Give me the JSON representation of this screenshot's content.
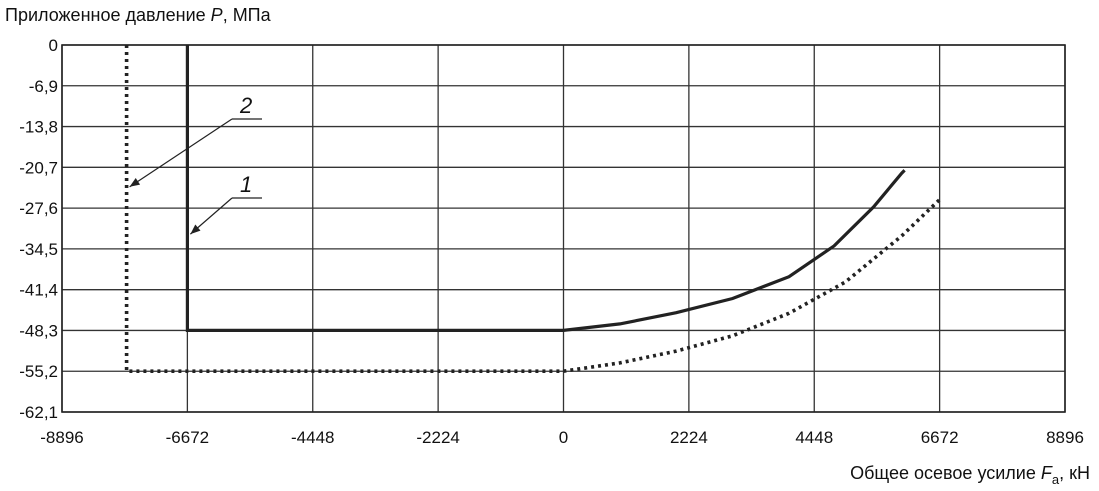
{
  "chart_data": {
    "type": "line",
    "title": "",
    "ylabel": "Приложенное давление",
    "ylabel_symbol": "P",
    "ylabel_unit": ", МПа",
    "xlabel": "Общее осевое усилие",
    "xlabel_symbol": "F",
    "xlabel_subscript": "a",
    "xlabel_unit": ", кН",
    "xlim": [
      -8896,
      8896
    ],
    "ylim": [
      -62.1,
      0
    ],
    "x_ticks": [
      -8896,
      -6672,
      -4448,
      -2224,
      0,
      2224,
      4448,
      6672,
      8896
    ],
    "x_tick_labels": [
      "-8896",
      "-6672",
      "-4448",
      "-2224",
      "0",
      "2224",
      "4448",
      "6672",
      "8896"
    ],
    "y_ticks": [
      0,
      -6.9,
      -13.8,
      -20.7,
      -27.6,
      -34.5,
      -41.4,
      -48.3,
      -55.2,
      -62.1
    ],
    "y_tick_labels": [
      "0",
      "-6,9",
      "-13,8",
      "-20,7",
      "-27,6",
      "-34,5",
      "-41,4",
      "-48,3",
      "-55,2",
      "-62,1"
    ],
    "grid": true,
    "series": [
      {
        "name": "1",
        "style": "solid",
        "color": "#222222",
        "points": [
          [
            -6672,
            0
          ],
          [
            -6672,
            -48.3
          ],
          [
            0,
            -48.3
          ],
          [
            1000,
            -47.2
          ],
          [
            2000,
            -45.3
          ],
          [
            3000,
            -42.9
          ],
          [
            4000,
            -39.2
          ],
          [
            4800,
            -34.0
          ],
          [
            5500,
            -27.4
          ],
          [
            6000,
            -21.7
          ],
          [
            6050,
            -21.2
          ],
          [
            6050,
            -21.2
          ]
        ]
      },
      {
        "name": "2",
        "style": "dotted",
        "color": "#222222",
        "points": [
          [
            -7750,
            0
          ],
          [
            -7750,
            -55.2
          ],
          [
            0,
            -55.2
          ],
          [
            1000,
            -53.8
          ],
          [
            2000,
            -51.8
          ],
          [
            3000,
            -49.2
          ],
          [
            4000,
            -45.4
          ],
          [
            5000,
            -40.1
          ],
          [
            6000,
            -32.3
          ],
          [
            6700,
            -25.9
          ]
        ]
      }
    ],
    "annotations": [
      {
        "label": "2",
        "points_to": [
          -7750,
          -24.0
        ]
      },
      {
        "label": "1",
        "points_to": [
          -6672,
          -32.0
        ]
      }
    ]
  }
}
